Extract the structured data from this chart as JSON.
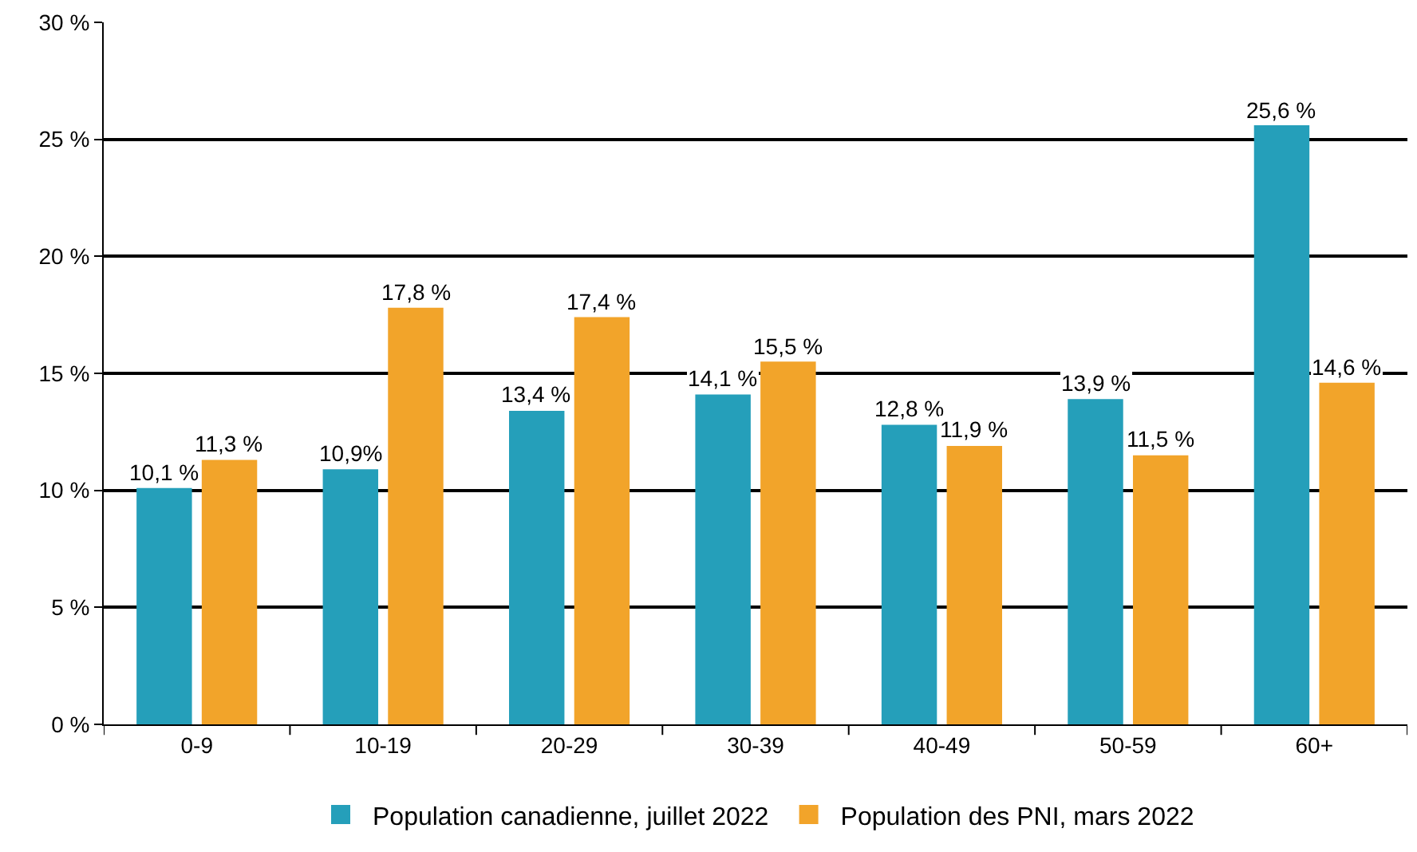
{
  "chart_data": {
    "type": "bar",
    "categories": [
      "0-9",
      "10-19",
      "20-29",
      "30-39",
      "40-49",
      "50-59",
      "60+"
    ],
    "series": [
      {
        "name": "Population canadienne, juillet 2022",
        "color": "#259fba",
        "values": [
          10.1,
          10.9,
          13.4,
          14.1,
          12.8,
          13.9,
          25.6
        ],
        "value_labels": [
          "10,1 %",
          "10,9%",
          "13,4 %",
          "14,1 %",
          "12,8 %",
          "13,9 %",
          "25,6 %"
        ]
      },
      {
        "name": "Population des PNI, mars 2022",
        "color": "#f2a42a",
        "values": [
          11.3,
          17.8,
          17.4,
          15.5,
          11.9,
          11.5,
          14.6
        ],
        "value_labels": [
          "11,3 %",
          "17,8 %",
          "17,4 %",
          "15,5 %",
          "11,9 %",
          "11,5 %",
          "14,6 %"
        ]
      }
    ],
    "ylim": [
      0,
      30
    ],
    "yticks": [
      {
        "value": 0,
        "label": "0 %"
      },
      {
        "value": 5,
        "label": "5 %"
      },
      {
        "value": 10,
        "label": "10 %"
      },
      {
        "value": 15,
        "label": "15 %"
      },
      {
        "value": 20,
        "label": "20 %"
      },
      {
        "value": 25,
        "label": "25 %"
      },
      {
        "value": 30,
        "label": "30 %"
      }
    ],
    "grid": "y",
    "legend": "bottom"
  }
}
